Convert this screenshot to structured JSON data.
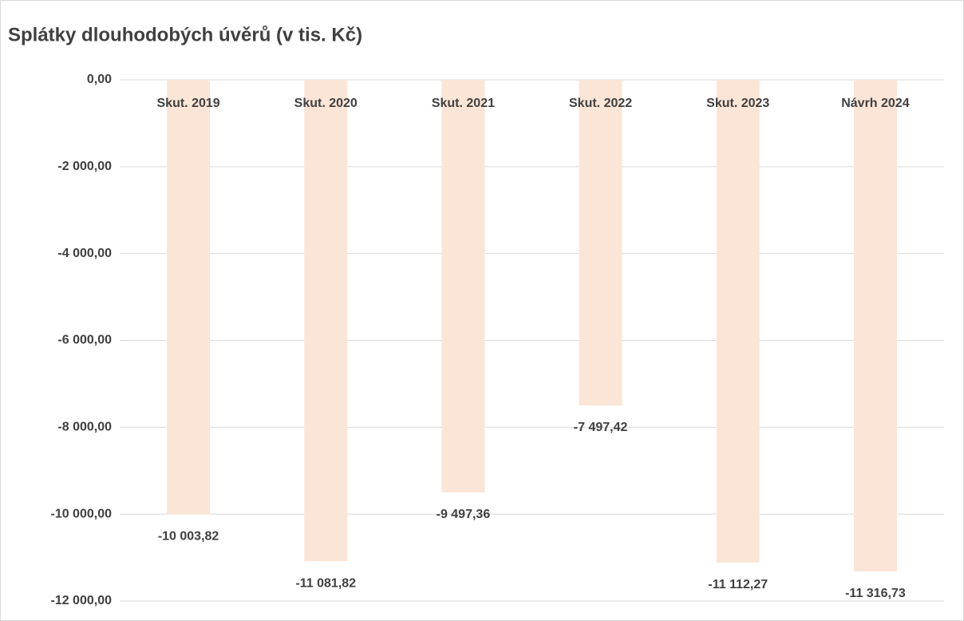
{
  "chart_data": {
    "type": "bar",
    "title": "Splátky dlouhodobých úvěrů (v tis. Kč)",
    "categories": [
      "Skut. 2019",
      "Skut. 2020",
      "Skut. 2021",
      "Skut. 2022",
      "Skut. 2023",
      "Návrh 2024"
    ],
    "values": [
      -10003.82,
      -11081.82,
      -9497.36,
      -7497.42,
      -11112.27,
      -11316.73
    ],
    "value_labels": [
      "-10 003,82",
      "-11 081,82",
      "-9 497,36",
      "-7 497,42",
      "-11 112,27",
      "-11 316,73"
    ],
    "color": "#fbe5d6",
    "ylim": [
      -12000,
      0
    ],
    "yticks": [
      {
        "value": 0,
        "label": "0,00"
      },
      {
        "value": -2000,
        "label": "-2 000,00"
      },
      {
        "value": -4000,
        "label": "-4 000,00"
      },
      {
        "value": -6000,
        "label": "-6 000,00"
      },
      {
        "value": -8000,
        "label": "-8 000,00"
      },
      {
        "value": -10000,
        "label": "-10 000,00"
      },
      {
        "value": -12000,
        "label": "-12 000,00"
      }
    ],
    "grid": true
  }
}
